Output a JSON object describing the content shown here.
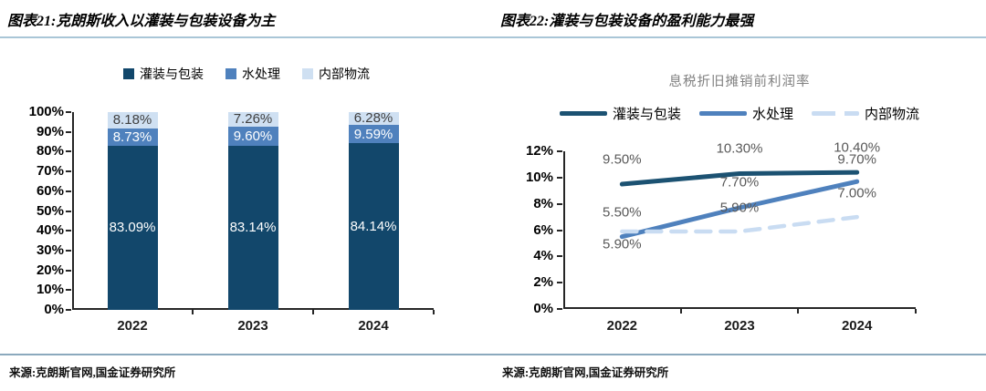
{
  "panels": [
    {
      "title": "图表21:克朗斯收入以灌装与包装设备为主",
      "source": "来源:克朗斯官网,国金证券研究所"
    },
    {
      "title": "图表22:灌装与包装设备的盈利能力最强",
      "source": "来源:克朗斯官网,国金证券研究所"
    }
  ],
  "colors": {
    "title_rule": "#a9c6d7",
    "source_rule": "#8ba9bd",
    "axis": "#262626",
    "subtitle_gray": "#808080",
    "data_label_gray": "#595959"
  },
  "chart_data": [
    {
      "type": "bar",
      "stacked": true,
      "categories": [
        "2022",
        "2023",
        "2024"
      ],
      "series": [
        {
          "name": "灌装与包装",
          "values": [
            83.09,
            83.14,
            84.14
          ],
          "color": "#12476b",
          "label_color": "#ffffff"
        },
        {
          "name": "水处理",
          "values": [
            8.73,
            9.6,
            9.59
          ],
          "color": "#4f81bd",
          "label_color": "#ffffff"
        },
        {
          "name": "内部物流",
          "values": [
            8.18,
            7.26,
            6.28
          ],
          "color": "#cfe0f2",
          "label_color": "#404040"
        }
      ],
      "value_suffix": "%",
      "y_ticks": [
        "100%",
        "90%",
        "80%",
        "70%",
        "60%",
        "50%",
        "40%",
        "30%",
        "20%",
        "10%",
        "0%"
      ],
      "ylim": [
        0,
        100
      ],
      "grid": false,
      "legend_position": "top"
    },
    {
      "type": "line",
      "title": "息税折旧摊销前利润率",
      "categories": [
        "2022",
        "2023",
        "2024"
      ],
      "series": [
        {
          "name": "灌装与包装",
          "values": [
            9.5,
            10.3,
            10.4
          ],
          "color": "#1c5272",
          "dash": false
        },
        {
          "name": "水处理",
          "values": [
            5.5,
            7.7,
            9.7
          ],
          "color": "#4f81bd",
          "dash": false
        },
        {
          "name": "内部物流",
          "values": [
            5.9,
            5.9,
            7.0
          ],
          "color": "#c9dcf2",
          "dash": true
        }
      ],
      "value_suffix": "%",
      "y_ticks": [
        "12%",
        "10%",
        "8%",
        "6%",
        "4%",
        "2%",
        "0%"
      ],
      "ylim": [
        0,
        12
      ],
      "grid": false,
      "legend_position": "top",
      "label_dy": [
        [
          -27,
          -28,
          -27
        ],
        [
          -27,
          -28,
          -24
        ],
        [
          14,
          -26,
          -26
        ]
      ]
    }
  ]
}
